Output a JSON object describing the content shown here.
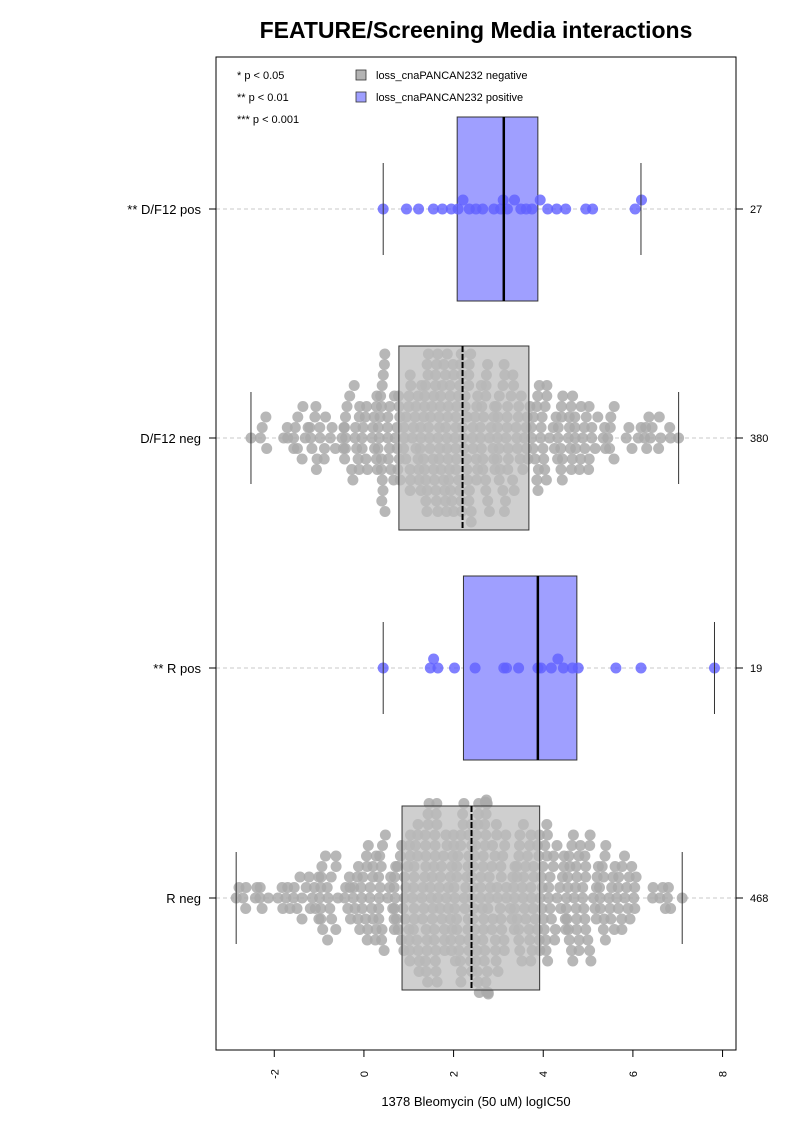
{
  "chart_data": {
    "type": "boxplot-beeswarm",
    "title": "FEATURE/Screening Media interactions",
    "xlabel": "1378 Bleomycin (50 uM) logIC50",
    "xlim": [
      -3.3,
      8.3
    ],
    "x_ticks": [
      -2,
      0,
      2,
      4,
      6,
      8
    ],
    "x_tick_labels": [
      "-2",
      "0",
      "2",
      "4",
      "6",
      "8"
    ],
    "grid": false,
    "legend_position": "top",
    "significance_key": [
      "* p < 0.05",
      "** p < 0.01",
      "*** p < 0.001"
    ],
    "legend": [
      {
        "label": "loss_cnaPANCAN232 negative",
        "color": "#b3b3b3"
      },
      {
        "label": "loss_cnaPANCAN232 positive",
        "color": "#9f9fff"
      }
    ],
    "colors": {
      "neg_box": "#bdbdbd",
      "pos_box": "#9f9fff",
      "neg_point": "#aaaaaa",
      "pos_point": "#6060ff"
    },
    "groups": [
      {
        "label": "** D/F12 pos",
        "n_label": "27",
        "n": 27,
        "status": "positive",
        "whisker_low": 0.43,
        "q1": 2.08,
        "median": 3.12,
        "q3": 3.88,
        "whisker_high": 6.18,
        "points": [
          0.43,
          0.95,
          1.22,
          1.55,
          1.75,
          1.95,
          2.1,
          2.2,
          2.35,
          2.5,
          2.65,
          2.9,
          3.05,
          3.12,
          3.2,
          3.35,
          3.5,
          3.62,
          3.75,
          3.9,
          4.1,
          4.3,
          4.5,
          4.95,
          5.1,
          6.05,
          6.18
        ]
      },
      {
        "label": "D/F12 neg",
        "n_label": "380",
        "n": 380,
        "status": "negative",
        "whisker_low": -2.52,
        "q1": 0.78,
        "median": 2.2,
        "q3": 3.68,
        "whisker_high": 7.02,
        "points": []
      },
      {
        "label": "** R pos",
        "n_label": "19",
        "n": 19,
        "status": "positive",
        "whisker_low": 0.43,
        "q1": 2.22,
        "median": 3.88,
        "q3": 4.75,
        "whisker_high": 7.82,
        "points": [
          0.43,
          1.48,
          1.55,
          1.65,
          2.02,
          2.48,
          3.12,
          3.18,
          3.45,
          3.88,
          3.95,
          4.18,
          4.3,
          4.45,
          4.65,
          4.78,
          5.62,
          6.18,
          7.82
        ]
      },
      {
        "label": "R neg",
        "n_label": "468",
        "n": 468,
        "status": "negative",
        "whisker_low": -2.85,
        "q1": 0.85,
        "median": 2.4,
        "q3": 3.92,
        "whisker_high": 7.1,
        "points": []
      }
    ]
  }
}
